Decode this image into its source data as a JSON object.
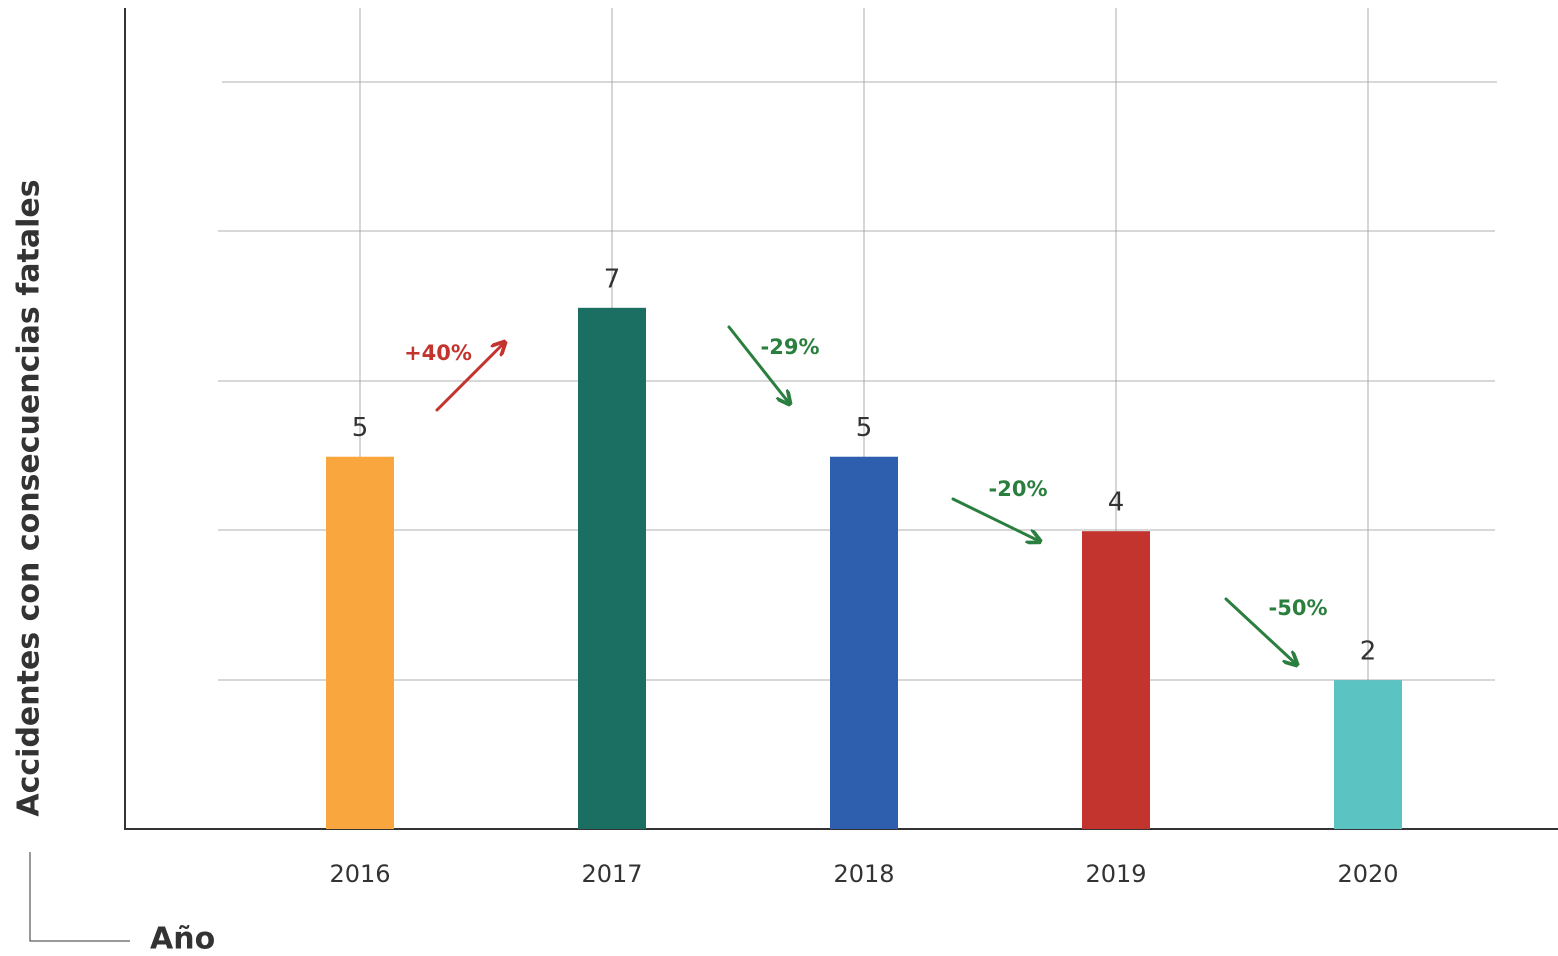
{
  "chart_data": {
    "type": "bar",
    "y_label": "Accidentes con consecuencias fatales",
    "x_label": "Año",
    "categories": [
      "2016",
      "2017",
      "2018",
      "2019",
      "2020"
    ],
    "values": [
      5,
      7,
      5,
      4,
      2
    ],
    "colors": [
      "#f9a63f",
      "#1a6e62",
      "#2d5fae",
      "#c4342f",
      "#5bc3c1"
    ],
    "ylim": [
      0,
      11
    ],
    "grid": true,
    "annotations": [
      {
        "text": "+40%",
        "color": "#c4342f"
      },
      {
        "text": "-29%",
        "color": "#2a7f3e"
      },
      {
        "text": "-20%",
        "color": "#2a7f3e"
      },
      {
        "text": "-50%",
        "color": "#2a7f3e"
      }
    ]
  }
}
